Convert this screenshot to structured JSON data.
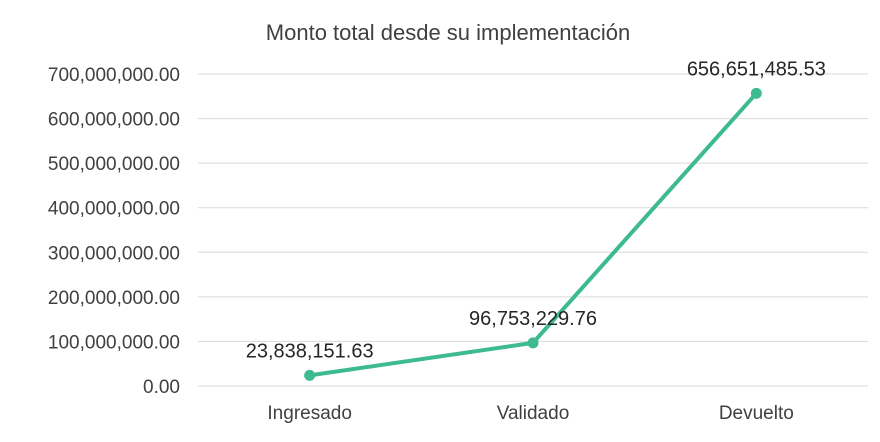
{
  "chart_data": {
    "type": "line",
    "title": "Monto total desde su implementación",
    "categories": [
      "Ingresado",
      "Validado",
      "Devuelto"
    ],
    "series": [
      {
        "values": [
          23838151.63,
          96753229.76,
          656651485.53
        ],
        "data_labels": [
          "23,838,151.63",
          "96,753,229.76",
          "656,651,485.53"
        ],
        "color": "#3dbb8f"
      }
    ],
    "y_ticks": [
      "0.00",
      "100,000,000.00",
      "200,000,000.00",
      "300,000,000.00",
      "400,000,000.00",
      "500,000,000.00",
      "600,000,000.00",
      "700,000,000.00"
    ],
    "ylim": [
      0,
      700000000
    ],
    "grid": true,
    "legend": "none",
    "gridline_color": "#d9d9d9",
    "text_color": "#404040"
  }
}
